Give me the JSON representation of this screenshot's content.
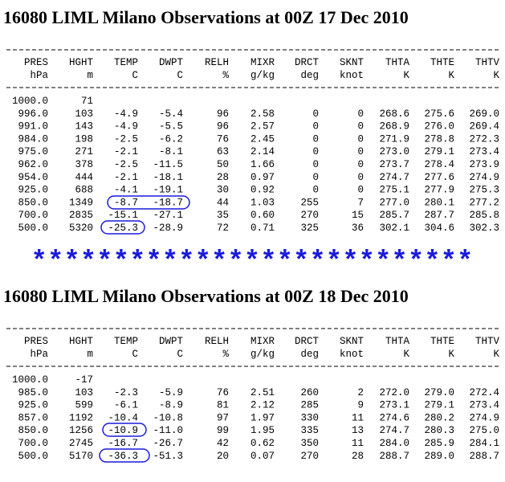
{
  "tables": [
    {
      "title": "16080 LIML Milano Observations at 00Z 17 Dec 2010",
      "headers": [
        [
          "PRES",
          "HGHT",
          "TEMP",
          "DWPT",
          "RELH",
          "MIXR",
          "DRCT",
          "SKNT",
          "THTA",
          "THTE",
          "THTV"
        ],
        [
          "hPa",
          "m",
          "C",
          "C",
          "%",
          "g/kg",
          "deg",
          "knot",
          "K",
          "K",
          "K"
        ]
      ],
      "rows": [
        [
          "1000.0",
          "71"
        ],
        [
          "996.0",
          "103",
          "-4.9",
          "-5.4",
          "96",
          "2.58",
          "0",
          "0",
          "268.6",
          "275.6",
          "269.0"
        ],
        [
          "991.0",
          "143",
          "-4.9",
          "-5.5",
          "96",
          "2.57",
          "0",
          "0",
          "268.9",
          "276.0",
          "269.4"
        ],
        [
          "984.0",
          "198",
          "-2.5",
          "-6.2",
          "76",
          "2.45",
          "0",
          "0",
          "271.9",
          "278.8",
          "272.3"
        ],
        [
          "975.0",
          "271",
          "-2.1",
          "-8.1",
          "63",
          "2.14",
          "0",
          "0",
          "273.0",
          "279.1",
          "273.4"
        ],
        [
          "962.0",
          "378",
          "-2.5",
          "-11.5",
          "50",
          "1.66",
          "0",
          "0",
          "273.7",
          "278.4",
          "273.9"
        ],
        [
          "954.0",
          "444",
          "-2.1",
          "-18.1",
          "28",
          "0.97",
          "0",
          "0",
          "274.7",
          "277.6",
          "274.9"
        ],
        [
          "925.0",
          "688",
          "-4.1",
          "-19.1",
          "30",
          "0.92",
          "0",
          "0",
          "275.1",
          "277.9",
          "275.3"
        ],
        [
          "850.0",
          "1349",
          "-8.7",
          "-18.7",
          "44",
          "1.03",
          "255",
          "7",
          "277.0",
          "280.1",
          "277.2"
        ],
        [
          "700.0",
          "2835",
          "-15.1",
          "-27.1",
          "35",
          "0.60",
          "270",
          "15",
          "285.7",
          "287.7",
          "285.8"
        ],
        [
          "500.0",
          "5320",
          "-25.3",
          "-28.9",
          "72",
          "0.71",
          "325",
          "36",
          "302.1",
          "304.6",
          "302.3"
        ]
      ]
    },
    {
      "title": "16080 LIML Milano Observations at 00Z 18 Dec 2010",
      "headers": [
        [
          "PRES",
          "HGHT",
          "TEMP",
          "DWPT",
          "RELH",
          "MIXR",
          "DRCT",
          "SKNT",
          "THTA",
          "THTE",
          "THTV"
        ],
        [
          "hPa",
          "m",
          "C",
          "C",
          "%",
          "g/kg",
          "deg",
          "knot",
          "K",
          "K",
          "K"
        ]
      ],
      "rows": [
        [
          "1000.0",
          "-17"
        ],
        [
          "985.0",
          "103",
          "-2.3",
          "-5.9",
          "76",
          "2.51",
          "260",
          "2",
          "272.0",
          "279.0",
          "272.4"
        ],
        [
          "925.0",
          "599",
          "-6.1",
          "-8.9",
          "81",
          "2.12",
          "285",
          "9",
          "273.1",
          "279.1",
          "273.4"
        ],
        [
          "857.0",
          "1192",
          "-10.4",
          "-10.8",
          "97",
          "1.97",
          "330",
          "11",
          "274.6",
          "280.2",
          "274.9"
        ],
        [
          "850.0",
          "1256",
          "-10.9",
          "-11.0",
          "99",
          "1.95",
          "335",
          "13",
          "274.7",
          "280.3",
          "275.0"
        ],
        [
          "700.0",
          "2745",
          "-16.7",
          "-26.7",
          "42",
          "0.62",
          "350",
          "11",
          "284.0",
          "285.9",
          "284.1"
        ],
        [
          "500.0",
          "5170",
          "-36.3",
          "-51.3",
          "20",
          "0.07",
          "270",
          "28",
          "288.7",
          "289.0",
          "288.7"
        ]
      ]
    }
  ],
  "separator": "***************************"
}
